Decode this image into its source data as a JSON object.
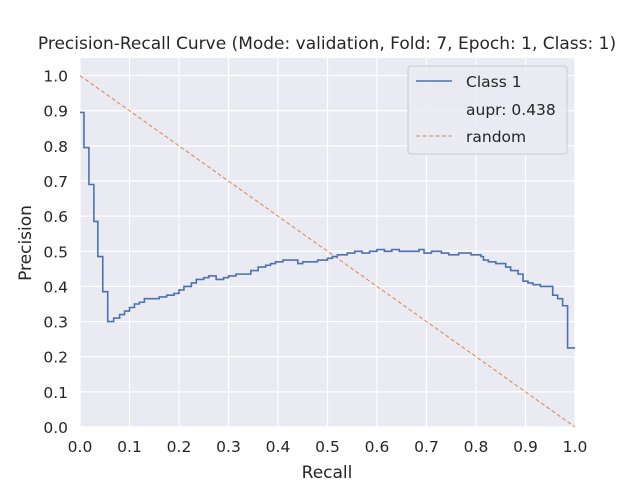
{
  "chart_data": {
    "type": "line",
    "title": "Precision-Recall Curve (Mode: validation, Fold: 7, Epoch: 1, Class: 1)",
    "xlabel": "Recall",
    "ylabel": "Precision",
    "xlim": [
      0.0,
      1.0
    ],
    "ylim": [
      0.0,
      1.05
    ],
    "xticks": [
      "0.0",
      "0.1",
      "0.2",
      "0.3",
      "0.4",
      "0.5",
      "0.6",
      "0.7",
      "0.8",
      "0.9",
      "1.0"
    ],
    "yticks": [
      "0.0",
      "0.1",
      "0.2",
      "0.3",
      "0.4",
      "0.5",
      "0.6",
      "0.7",
      "0.8",
      "0.9",
      "1.0"
    ],
    "grid": true,
    "legend_position": "top-right",
    "legend": [
      "Class 1",
      "aupr: 0.438",
      "random"
    ],
    "series": [
      {
        "name": "Class 1",
        "style": "step",
        "color": "#4c72b0",
        "points": [
          [
            0.0,
            0.895
          ],
          [
            0.008,
            0.895
          ],
          [
            0.008,
            0.795
          ],
          [
            0.018,
            0.795
          ],
          [
            0.018,
            0.69
          ],
          [
            0.028,
            0.69
          ],
          [
            0.028,
            0.585
          ],
          [
            0.036,
            0.585
          ],
          [
            0.036,
            0.485
          ],
          [
            0.046,
            0.485
          ],
          [
            0.046,
            0.385
          ],
          [
            0.056,
            0.385
          ],
          [
            0.056,
            0.3
          ],
          [
            0.068,
            0.3
          ],
          [
            0.068,
            0.31
          ],
          [
            0.08,
            0.31
          ],
          [
            0.08,
            0.32
          ],
          [
            0.09,
            0.32
          ],
          [
            0.09,
            0.33
          ],
          [
            0.1,
            0.33
          ],
          [
            0.1,
            0.34
          ],
          [
            0.11,
            0.34
          ],
          [
            0.11,
            0.35
          ],
          [
            0.12,
            0.35
          ],
          [
            0.12,
            0.355
          ],
          [
            0.13,
            0.355
          ],
          [
            0.13,
            0.365
          ],
          [
            0.16,
            0.365
          ],
          [
            0.16,
            0.37
          ],
          [
            0.175,
            0.37
          ],
          [
            0.175,
            0.375
          ],
          [
            0.19,
            0.375
          ],
          [
            0.19,
            0.38
          ],
          [
            0.2,
            0.38
          ],
          [
            0.2,
            0.39
          ],
          [
            0.21,
            0.39
          ],
          [
            0.21,
            0.4
          ],
          [
            0.225,
            0.4
          ],
          [
            0.225,
            0.41
          ],
          [
            0.235,
            0.41
          ],
          [
            0.235,
            0.42
          ],
          [
            0.25,
            0.42
          ],
          [
            0.25,
            0.425
          ],
          [
            0.26,
            0.425
          ],
          [
            0.26,
            0.43
          ],
          [
            0.275,
            0.43
          ],
          [
            0.275,
            0.42
          ],
          [
            0.29,
            0.42
          ],
          [
            0.29,
            0.425
          ],
          [
            0.3,
            0.425
          ],
          [
            0.3,
            0.43
          ],
          [
            0.315,
            0.43
          ],
          [
            0.315,
            0.435
          ],
          [
            0.345,
            0.435
          ],
          [
            0.345,
            0.445
          ],
          [
            0.36,
            0.445
          ],
          [
            0.36,
            0.455
          ],
          [
            0.375,
            0.455
          ],
          [
            0.375,
            0.46
          ],
          [
            0.385,
            0.46
          ],
          [
            0.385,
            0.465
          ],
          [
            0.395,
            0.465
          ],
          [
            0.395,
            0.47
          ],
          [
            0.41,
            0.47
          ],
          [
            0.41,
            0.475
          ],
          [
            0.44,
            0.475
          ],
          [
            0.44,
            0.465
          ],
          [
            0.45,
            0.465
          ],
          [
            0.45,
            0.47
          ],
          [
            0.48,
            0.47
          ],
          [
            0.48,
            0.475
          ],
          [
            0.5,
            0.475
          ],
          [
            0.5,
            0.48
          ],
          [
            0.51,
            0.48
          ],
          [
            0.51,
            0.485
          ],
          [
            0.52,
            0.485
          ],
          [
            0.52,
            0.49
          ],
          [
            0.54,
            0.49
          ],
          [
            0.54,
            0.495
          ],
          [
            0.555,
            0.495
          ],
          [
            0.555,
            0.5
          ],
          [
            0.57,
            0.5
          ],
          [
            0.57,
            0.495
          ],
          [
            0.585,
            0.495
          ],
          [
            0.585,
            0.5
          ],
          [
            0.6,
            0.5
          ],
          [
            0.6,
            0.505
          ],
          [
            0.615,
            0.505
          ],
          [
            0.615,
            0.5
          ],
          [
            0.63,
            0.5
          ],
          [
            0.63,
            0.505
          ],
          [
            0.645,
            0.505
          ],
          [
            0.645,
            0.5
          ],
          [
            0.685,
            0.5
          ],
          [
            0.685,
            0.505
          ],
          [
            0.695,
            0.505
          ],
          [
            0.695,
            0.495
          ],
          [
            0.71,
            0.495
          ],
          [
            0.71,
            0.5
          ],
          [
            0.73,
            0.5
          ],
          [
            0.73,
            0.495
          ],
          [
            0.745,
            0.495
          ],
          [
            0.745,
            0.49
          ],
          [
            0.765,
            0.49
          ],
          [
            0.765,
            0.495
          ],
          [
            0.79,
            0.495
          ],
          [
            0.79,
            0.49
          ],
          [
            0.81,
            0.49
          ],
          [
            0.81,
            0.485
          ],
          [
            0.815,
            0.485
          ],
          [
            0.815,
            0.475
          ],
          [
            0.825,
            0.475
          ],
          [
            0.825,
            0.47
          ],
          [
            0.84,
            0.47
          ],
          [
            0.84,
            0.465
          ],
          [
            0.86,
            0.465
          ],
          [
            0.86,
            0.455
          ],
          [
            0.87,
            0.455
          ],
          [
            0.87,
            0.445
          ],
          [
            0.885,
            0.445
          ],
          [
            0.885,
            0.435
          ],
          [
            0.895,
            0.435
          ],
          [
            0.895,
            0.415
          ],
          [
            0.905,
            0.415
          ],
          [
            0.905,
            0.41
          ],
          [
            0.915,
            0.41
          ],
          [
            0.915,
            0.405
          ],
          [
            0.93,
            0.405
          ],
          [
            0.93,
            0.4
          ],
          [
            0.955,
            0.4
          ],
          [
            0.955,
            0.375
          ],
          [
            0.965,
            0.375
          ],
          [
            0.965,
            0.365
          ],
          [
            0.975,
            0.365
          ],
          [
            0.975,
            0.345
          ],
          [
            0.985,
            0.345
          ],
          [
            0.985,
            0.225
          ],
          [
            1.0,
            0.225
          ]
        ]
      },
      {
        "name": "random",
        "style": "dashed",
        "color": "#dd8452",
        "points": [
          [
            0.0,
            1.0
          ],
          [
            1.0,
            0.0
          ]
        ]
      }
    ]
  }
}
